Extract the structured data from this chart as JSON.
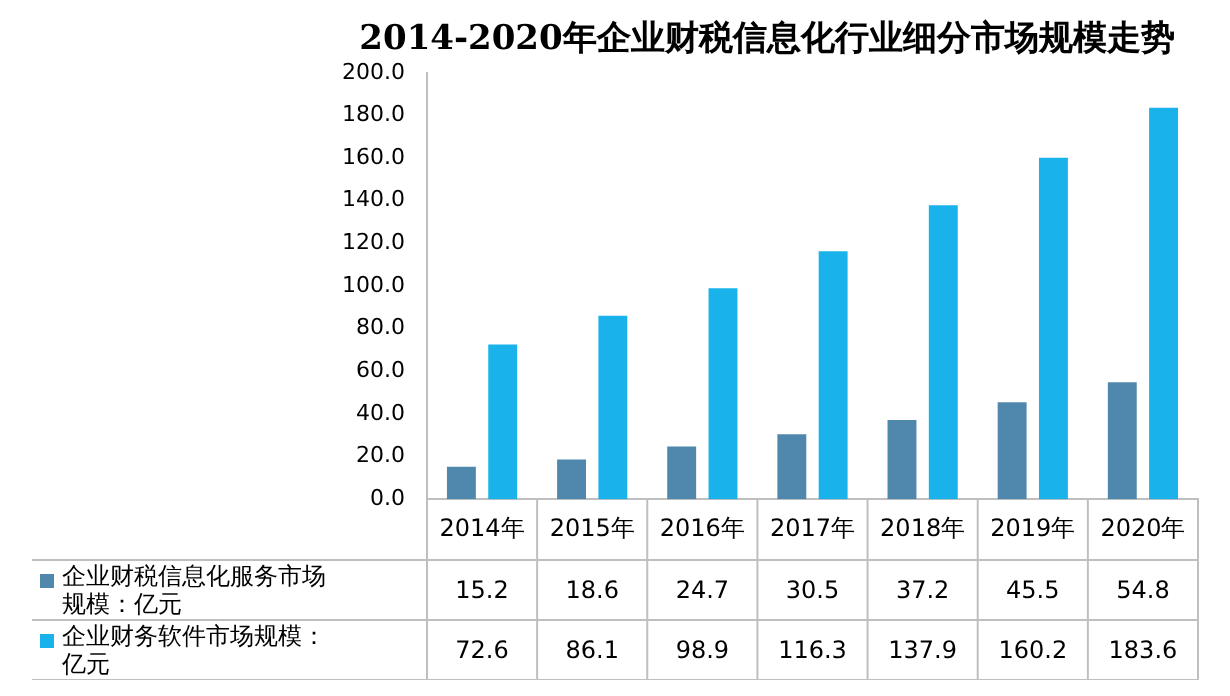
{
  "chart_data": {
    "type": "bar",
    "title": "2014-2020年企业财税信息化行业细分市场规模走势",
    "categories": [
      "2014年",
      "2015年",
      "2016年",
      "2017年",
      "2018年",
      "2019年",
      "2020年"
    ],
    "series": [
      {
        "name": "企业财税信息化服务市场规模：亿元",
        "color": "#4f87ad",
        "values": [
          15.2,
          18.6,
          24.7,
          30.5,
          37.2,
          45.5,
          54.8
        ]
      },
      {
        "name": "企业财务软件市场规模：亿元",
        "color": "#1ab2ea",
        "values": [
          72.6,
          86.1,
          98.9,
          116.3,
          137.9,
          160.2,
          183.6
        ]
      }
    ],
    "ylim": [
      0,
      200
    ],
    "yticks": [
      {
        "value": 0,
        "label": "0.0"
      },
      {
        "value": 20,
        "label": "20.0"
      },
      {
        "value": 40,
        "label": "40.0"
      },
      {
        "value": 60,
        "label": "60.0"
      },
      {
        "value": 80,
        "label": "80.0"
      },
      {
        "value": 100,
        "label": "100.0"
      },
      {
        "value": 120,
        "label": "120.0"
      },
      {
        "value": 140,
        "label": "140.0"
      },
      {
        "value": 160,
        "label": "160.0"
      },
      {
        "value": 180,
        "label": "180.0"
      },
      {
        "value": 200,
        "label": "200.0"
      }
    ],
    "grid": false,
    "legend": "bottom",
    "data_labels": true
  }
}
